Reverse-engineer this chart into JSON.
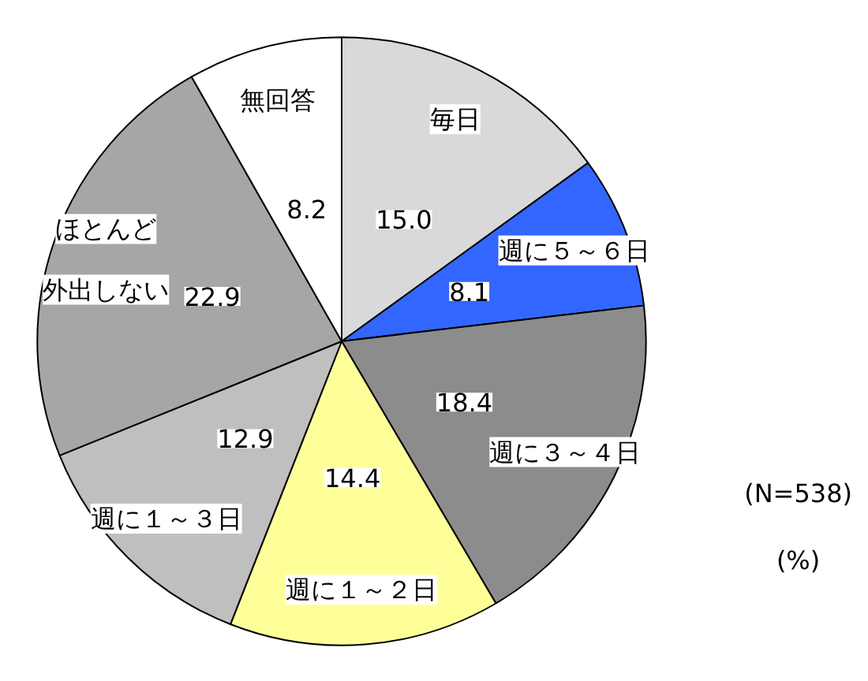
{
  "chart_data": {
    "type": "pie",
    "categories": [
      "毎日",
      "週に５～６日",
      "週に３～４日",
      "週に１～２日",
      "週に１～３日",
      "ほとんど外出しない",
      "無回答"
    ],
    "values": [
      15.0,
      8.1,
      18.4,
      14.4,
      12.9,
      22.9,
      8.2
    ],
    "colors": [
      "#d9d9d9",
      "#3366ff",
      "#8c8c8c",
      "#ffff99",
      "#bfbfbf",
      "#a6a6a6",
      "#ffffff"
    ],
    "value_labels": [
      "15.0",
      "8.1",
      "18.4",
      "14.4",
      "12.9",
      "22.9",
      "8.2"
    ],
    "annotations": [
      "(N=538)",
      "(%)"
    ]
  }
}
